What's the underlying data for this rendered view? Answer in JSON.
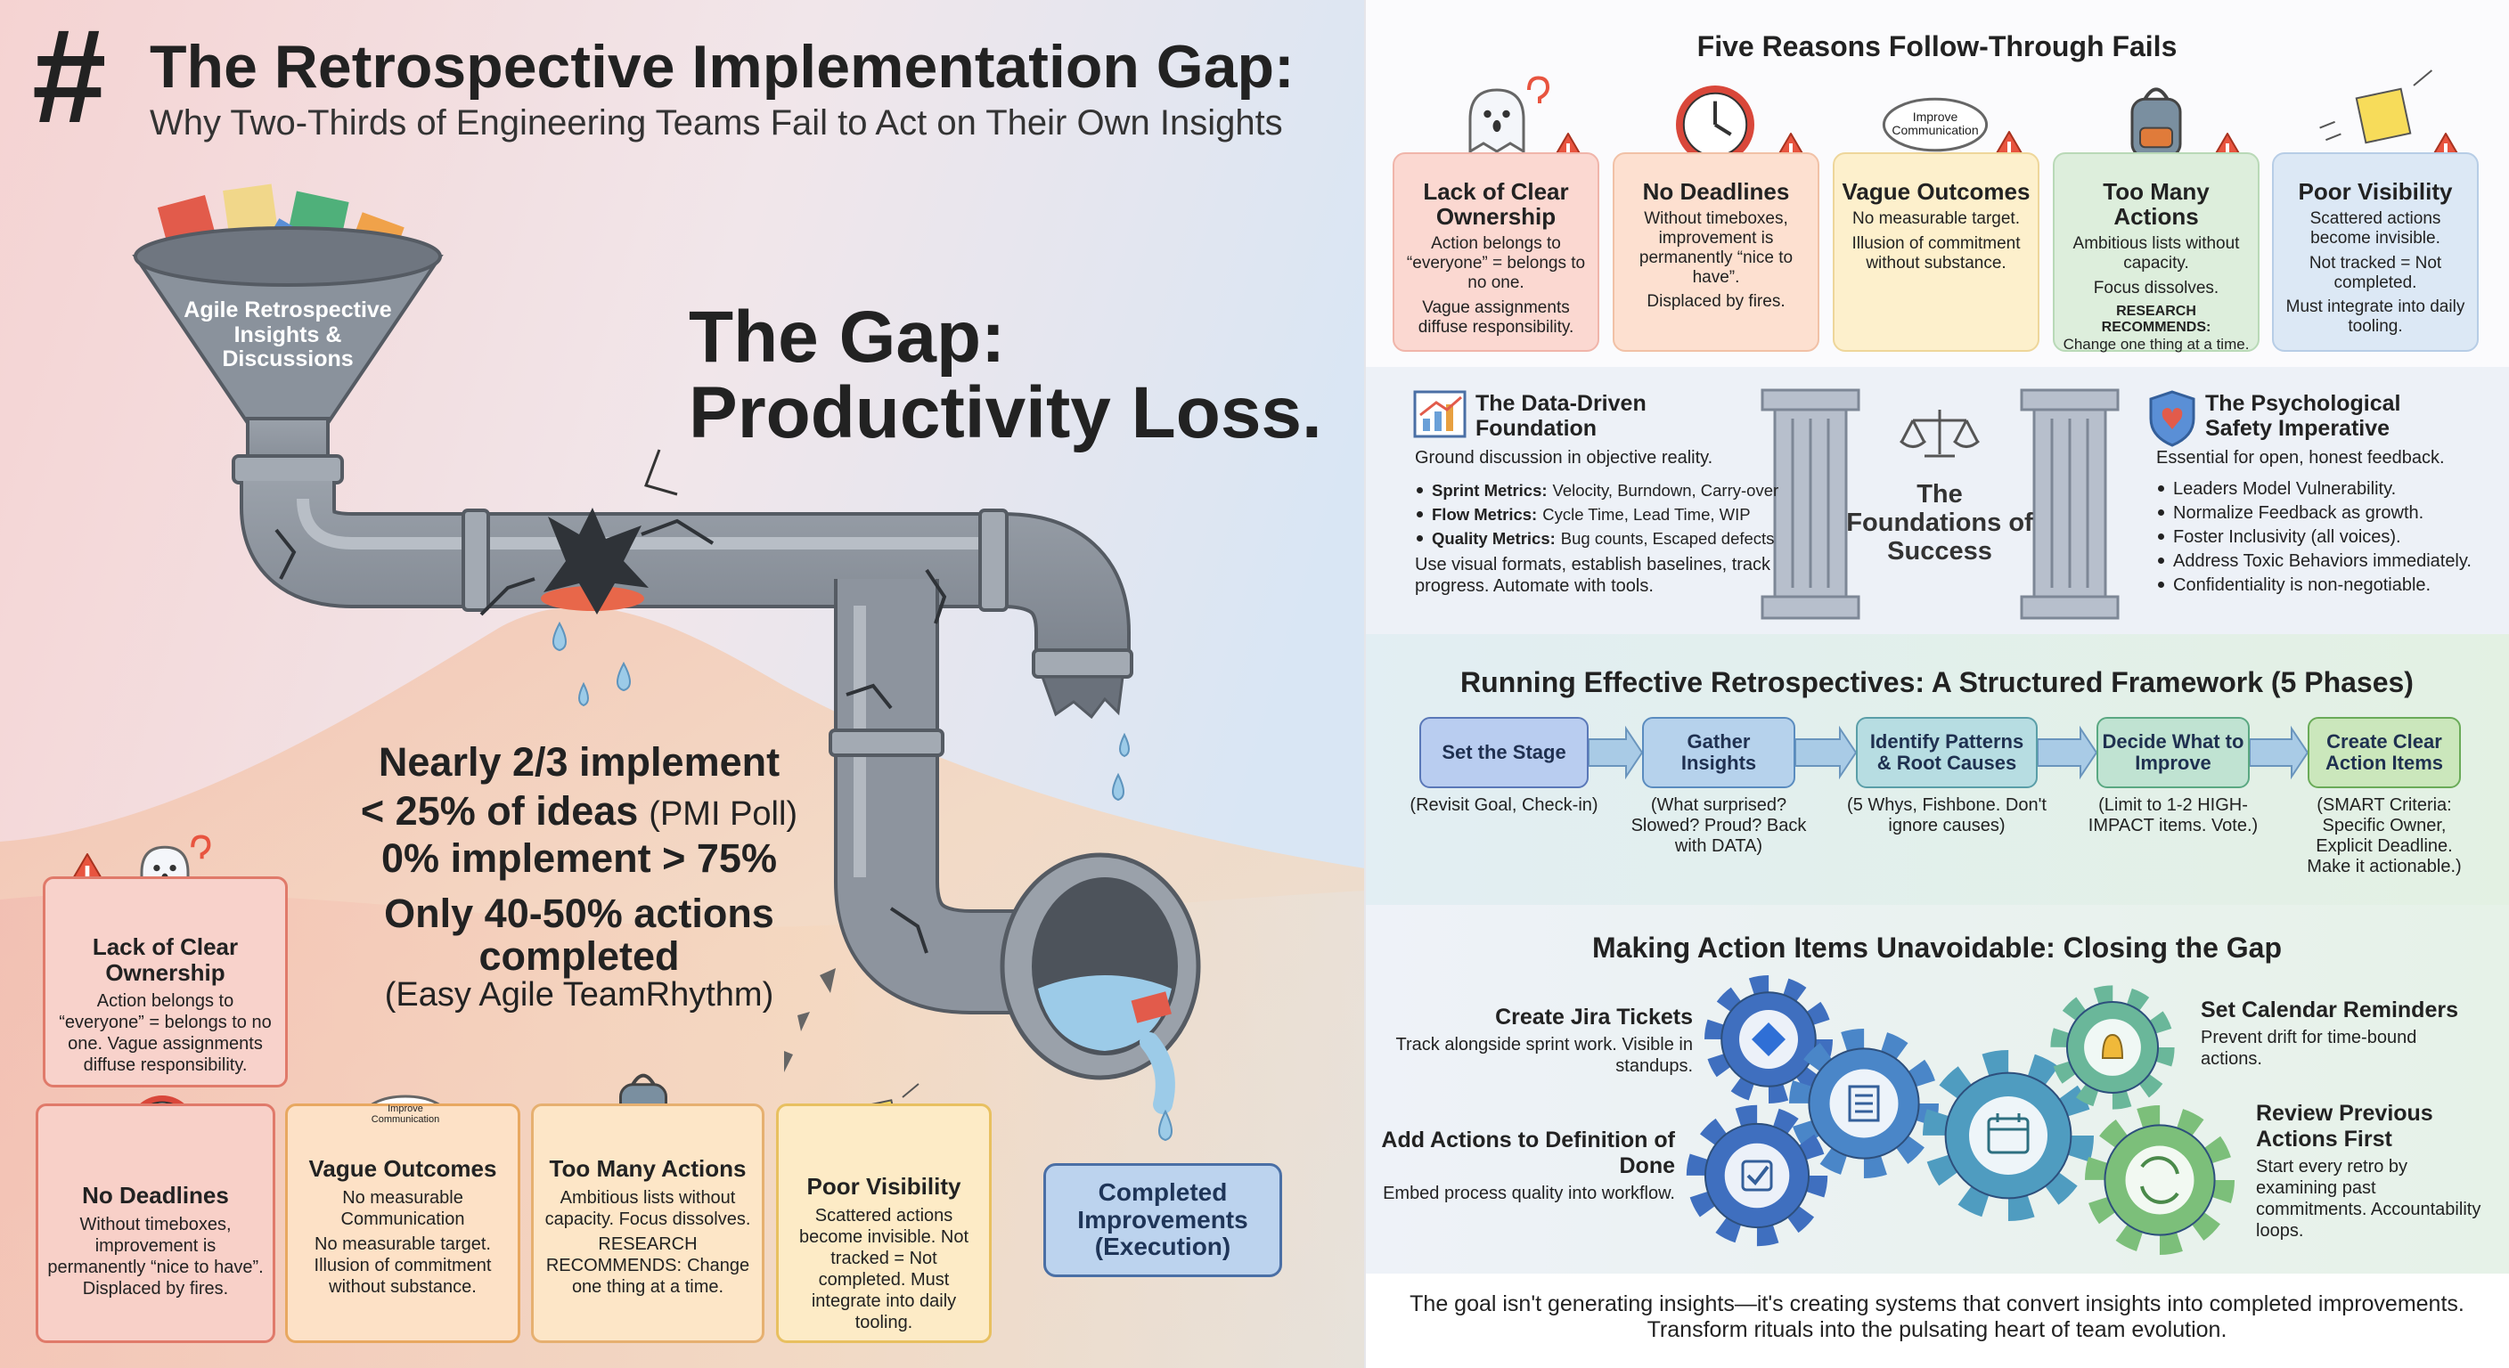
{
  "header": {
    "symbol": "#",
    "title": "The Retrospective Implementation Gap:",
    "subtitle": "Why Two-Thirds of Engineering Teams Fail to Act on Their Own Insights"
  },
  "funnel_label": "Agile Retrospective Insights & Discussions",
  "gap": {
    "line1": "The Gap:",
    "line2": "Productivity Loss."
  },
  "stats": {
    "lines": [
      "Nearly 2/3 implement",
      "< 25% of ideas",
      "0% implement > 75%",
      "Only 40-50% actions",
      "completed"
    ],
    "poll_source": "(PMI Poll)",
    "study_source": "(Easy Agile TeamRhythm)"
  },
  "outlet_label": "Completed Improvements (Execution)",
  "left_cards": [
    {
      "title": "Lack of Clear Ownership",
      "body": [
        "Action belongs to “everyone” = belongs to no one. Vague assignments diffuse responsibility."
      ]
    },
    {
      "title": "No Deadlines",
      "body": [
        "Without timeboxes, improvement is permanently “nice to have”. Displaced by fires."
      ]
    },
    {
      "title": "Vague Outcomes",
      "icon_text": "Improve Communication",
      "body": [
        "No measurable Communication",
        "No measurable target. Illusion of commitment without substance."
      ]
    },
    {
      "title": "Too Many Actions",
      "body": [
        "Ambitious lists without capacity. Focus dissolves."
      ],
      "note": {
        "label": "RESEARCH RECOMMENDS:",
        "text": "Change one thing at a time."
      }
    },
    {
      "title": "Poor Visibility",
      "body": [
        "Scattered actions become invisible. Not tracked = Not completed. Must integrate into daily tooling."
      ]
    }
  ],
  "reasons": {
    "title": "Five Reasons Follow-Through Fails",
    "cards": [
      {
        "title": "Lack of Clear Ownership",
        "body": [
          "Action belongs to “everyone” = belongs to no one.",
          "Vague assignments diffuse responsibility."
        ]
      },
      {
        "title": "No Deadlines",
        "body": [
          "Without timeboxes, improvement is permanently “nice to have”.",
          "Displaced by fires."
        ]
      },
      {
        "title": "Vague Outcomes",
        "icon_text": "Improve Communication",
        "body": [
          "No measurable target.",
          "Illusion of commitment without substance."
        ]
      },
      {
        "title": "Too Many Actions",
        "body": [
          "Ambitious lists without capacity.",
          "Focus dissolves."
        ],
        "note": {
          "label": "RESEARCH RECOMMENDS:",
          "text": "Change one thing at a time."
        }
      },
      {
        "title": "Poor Visibility",
        "body": [
          "Scattered actions become invisible.",
          "Not tracked = Not completed.",
          "Must integrate into daily tooling."
        ]
      }
    ]
  },
  "foundations": {
    "center": "The Foundations of Success",
    "data": {
      "title": "The Data-Driven Foundation",
      "intro": "Ground discussion in objective reality.",
      "bullets": [
        {
          "label": "Sprint Metrics:",
          "text": "Velocity, Burndown, Carry-over"
        },
        {
          "label": "Flow Metrics:",
          "text": "Cycle Time, Lead Time, WIP"
        },
        {
          "label": "Quality Metrics:",
          "text": "Bug counts, Escaped defects"
        }
      ],
      "outro": "Use visual formats, establish baselines, track progress. Automate with tools."
    },
    "safety": {
      "title": "The Psychological Safety Imperative",
      "intro": "Essential for open, honest feedback.",
      "bullets": [
        "Leaders Model Vulnerability.",
        "Normalize Feedback as growth.",
        "Foster Inclusivity (all voices).",
        "Address Toxic Behaviors immediately.",
        "Confidentiality is non-negotiable."
      ]
    }
  },
  "framework": {
    "title": "Running Effective Retrospectives: A Structured Framework (5 Phases)",
    "phases": [
      {
        "name": "Set the Stage",
        "detail": "(Revisit Goal, Check-in)"
      },
      {
        "name": "Gather Insights",
        "detail": "(What surprised? Slowed? Proud? Back with DATA)"
      },
      {
        "name": "Identify Patterns & Root Causes",
        "detail": "(5 Whys, Fishbone. Don't ignore causes)"
      },
      {
        "name": "Decide What to Improve",
        "detail": "(Limit to 1-2 HIGH-IMPACT items. Vote.)"
      },
      {
        "name": "Create Clear Action Items",
        "detail": "(SMART Criteria: Specific Owner, Explicit Deadline. Make it actionable.)"
      }
    ]
  },
  "closing": {
    "title": "Making Action Items Unavoidable: Closing the Gap",
    "items": [
      {
        "title": "Create Jira Tickets",
        "text": "Track alongside sprint work. Visible in standups."
      },
      {
        "title": "Add Actions to Definition of Done",
        "text": "Embed process quality into workflow."
      },
      {
        "title": "Set Calendar Reminders",
        "text": "Prevent drift for time-bound actions."
      },
      {
        "title": "Review Previous Actions First",
        "text": "Start every retro by examining past commitments. Accountability loops."
      }
    ]
  },
  "footer": [
    "The goal isn't generating insights—it's creating systems that convert insights into completed improvements.",
    "Transform rituals into the pulsating heart of team evolution."
  ]
}
